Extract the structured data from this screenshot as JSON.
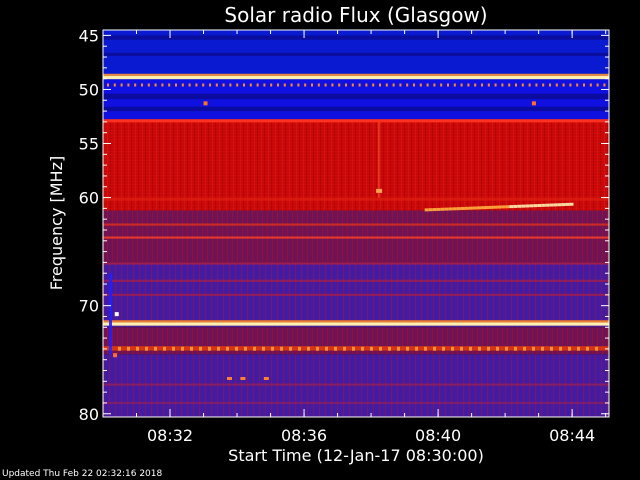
{
  "footer": {
    "updated_text": "Updated Thu Feb 22 02:32:16 2018"
  },
  "chart_data": {
    "type": "heatmap",
    "title": "Solar radio Flux (Glasgow)",
    "xlabel": "Start Time (12-Jan-17 08:30:00)",
    "ylabel": "Frequency [MHz]",
    "x_tick_labels": [
      "08:32",
      "08:36",
      "08:40",
      "08:44"
    ],
    "x_tick_minutes": [
      2,
      6,
      10,
      14
    ],
    "xlim_minutes": [
      0,
      15.1
    ],
    "y_tick_labels": [
      "45",
      "50",
      "55",
      "60",
      "70",
      "80"
    ],
    "y_tick_values": [
      45,
      50,
      55,
      60,
      70,
      80
    ],
    "ylim": [
      44.5,
      80.3
    ],
    "y_scale": "linear",
    "colors": {
      "low_background": "#0a1ad0",
      "high_background": "#c80a0a",
      "bright_line": "#fff0b0",
      "mid_band": "#4a18a8",
      "frame": "#ffffff"
    }
  }
}
